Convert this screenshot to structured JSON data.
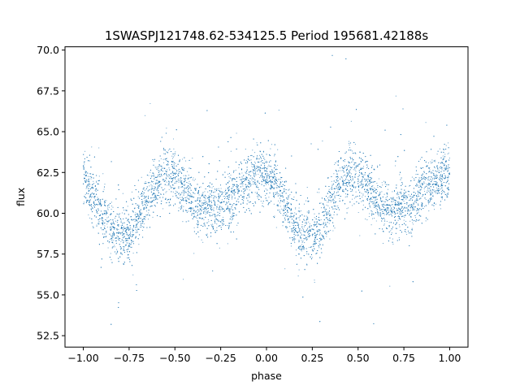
{
  "chart_data": {
    "type": "scatter",
    "title": "1SWASPJ121748.62-534125.5 Period 195681.42188s",
    "xlabel": "phase",
    "ylabel": "flux",
    "xlim": [
      -1.1,
      1.1
    ],
    "ylim": [
      51.8,
      70.2
    ],
    "xticks": [
      -1.0,
      -0.75,
      -0.5,
      -0.25,
      0.0,
      0.25,
      0.5,
      0.75,
      1.0
    ],
    "xtick_labels": [
      "−1.00",
      "−0.75",
      "−0.50",
      "−0.25",
      "0.00",
      "0.25",
      "0.50",
      "0.75",
      "1.00"
    ],
    "yticks": [
      52.5,
      55.0,
      57.5,
      60.0,
      62.5,
      65.0,
      67.5,
      70.0
    ],
    "ytick_labels": [
      "52.5",
      "55.0",
      "57.5",
      "60.0",
      "62.5",
      "65.0",
      "67.5",
      "70.0"
    ],
    "grid": false,
    "legend": "none",
    "marker_color": "#1f77b4",
    "series": [
      {
        "phase": [
          -1.0,
          -0.95,
          -0.9,
          -0.85,
          -0.8,
          -0.75,
          -0.7,
          -0.65,
          -0.6,
          -0.55,
          -0.5,
          -0.45,
          -0.4,
          -0.35,
          -0.3,
          -0.25,
          -0.2,
          -0.15,
          -0.1,
          -0.05,
          0.0,
          0.05,
          0.1,
          0.15,
          0.2,
          0.25,
          0.3,
          0.35,
          0.4,
          0.45,
          0.5,
          0.55,
          0.6,
          0.65,
          0.7,
          0.75,
          0.8,
          0.85,
          0.9,
          0.95,
          1.0
        ],
        "flux_mean": [
          62.3,
          61.2,
          60.0,
          59.0,
          58.6,
          58.8,
          59.6,
          61.0,
          62.0,
          62.5,
          62.2,
          61.4,
          60.6,
          60.4,
          60.3,
          60.5,
          60.9,
          61.4,
          61.9,
          62.4,
          62.5,
          61.8,
          60.5,
          59.4,
          58.6,
          58.6,
          59.2,
          60.5,
          61.8,
          62.4,
          62.4,
          61.8,
          60.8,
          60.3,
          60.2,
          60.4,
          60.8,
          61.3,
          61.8,
          62.2,
          62.3
        ],
        "flux_scatter": 0.85
      }
    ]
  }
}
